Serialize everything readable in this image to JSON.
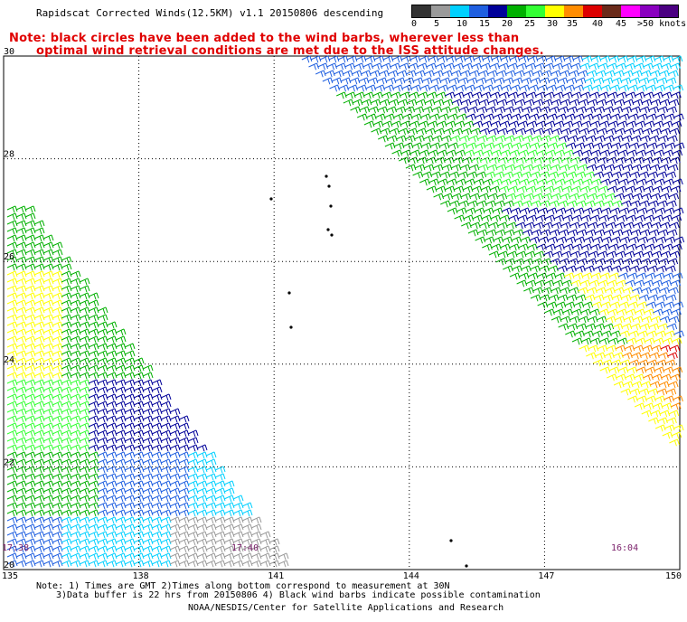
{
  "header": {
    "title": "Rapidscat Corrected Winds(12.5KM) v1.1 20150806 descending",
    "note_line1": "Note: black circles have been added to the wind barbs, wherever less than",
    "note_line2": "optimal wind retrieval conditions are met due to the ISS attitude changes."
  },
  "legend": {
    "items": [
      {
        "label": "0",
        "color": "#333333"
      },
      {
        "label": "5",
        "color": "#9a9a9a"
      },
      {
        "label": "10",
        "color": "#00d0ff"
      },
      {
        "label": "15",
        "color": "#1f5fe0"
      },
      {
        "label": "20",
        "color": "#000099"
      },
      {
        "label": "25",
        "color": "#00b000"
      },
      {
        "label": "30",
        "color": "#33ff33"
      },
      {
        "label": "35",
        "color": "#ffff00"
      },
      {
        "label": "40",
        "color": "#ff8c00"
      },
      {
        "label": "45",
        "color": "#dd0000"
      },
      {
        "label": ">50 knots",
        "color": "#6a2a1a"
      }
    ],
    "extra_colors": [
      "#ff00ff",
      "#8a00c0",
      "#4b0082"
    ]
  },
  "map": {
    "lat_labels": [
      "30",
      "28",
      "26",
      "24",
      "22",
      "20"
    ],
    "lon_labels": [
      "135",
      "138",
      "141",
      "144",
      "147",
      "150"
    ],
    "times": [
      "17:38",
      "17:40",
      "16:04"
    ],
    "lon_range": [
      135,
      150
    ],
    "lat_range": [
      20,
      30
    ]
  },
  "footer": {
    "line1": "Note: 1) Times are GMT 2)Times along bottom correspond to measurement at 30N",
    "line2": "3)Data buffer is 22 hrs from 20150806 4) Black wind barbs indicate possible contamination",
    "line3": "NOAA/NESDIS/Center for Satellite Applications and Research"
  }
}
